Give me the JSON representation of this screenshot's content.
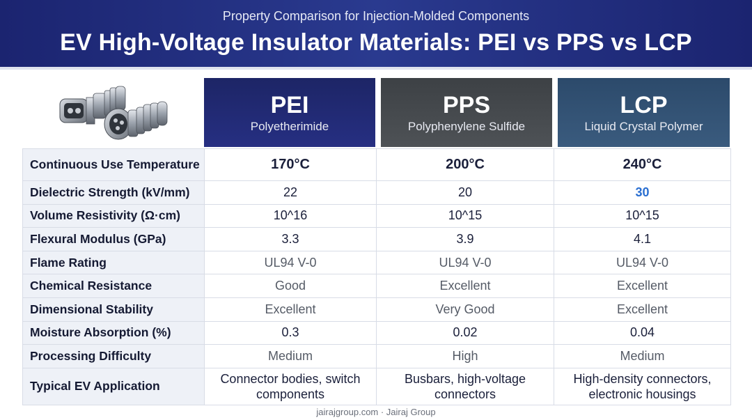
{
  "header": {
    "subtitle": "Property Comparison for Injection-Molded Components",
    "title": "EV High-Voltage Insulator Materials: PEI vs PPS vs LCP"
  },
  "materials": [
    {
      "abbr": "PEI",
      "name": "Polyetherimide",
      "color": "#1d2566"
    },
    {
      "abbr": "PPS",
      "name": "Polyphenylene Sulfide",
      "color": "#44484c"
    },
    {
      "abbr": "LCP",
      "name": "Liquid Crystal Polymer",
      "color": "#33536f"
    }
  ],
  "rows": [
    {
      "label": "Continuous Use Temperature",
      "values": [
        "170°C",
        "200°C",
        "240°C"
      ]
    },
    {
      "label": "Dielectric Strength (kV/mm)",
      "values": [
        "22",
        "20",
        "30"
      ]
    },
    {
      "label": "Volume Resistivity (Ω·cm)",
      "values": [
        "10^16",
        "10^15",
        "10^15"
      ]
    },
    {
      "label": "Flexural Modulus (GPa)",
      "values": [
        "3.3",
        "3.9",
        "4.1"
      ]
    },
    {
      "label": "Flame Rating",
      "values": [
        "UL94 V-0",
        "UL94 V-0",
        "UL94 V-0"
      ]
    },
    {
      "label": "Chemical Resistance",
      "values": [
        "Good",
        "Excellent",
        "Excellent"
      ]
    },
    {
      "label": "Dimensional Stability",
      "values": [
        "Excellent",
        "Very Good",
        "Excellent"
      ]
    },
    {
      "label": "Moisture Absorption (%)",
      "values": [
        "0.3",
        "0.02",
        "0.04"
      ]
    },
    {
      "label": "Processing Difficulty",
      "values": [
        "Medium",
        "High",
        "Medium"
      ]
    },
    {
      "label": "Typical EV Application",
      "values": [
        "Connector bodies, switch components",
        "Busbars, high-voltage connectors",
        "High-density connectors, electronic housings"
      ]
    }
  ],
  "highlight_color": "#2a6fd1",
  "footer": "jairajgroup.com · Jairaj Group"
}
